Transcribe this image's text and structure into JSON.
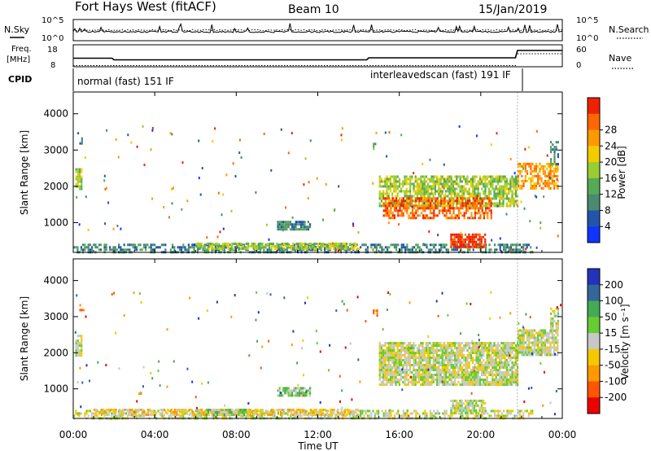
{
  "header": {
    "station": "Fort Hays West (fitACF)",
    "beam": "Beam 10",
    "date": "15/Jan/2019"
  },
  "noise_panel": {
    "left_label": "N.Sky",
    "right_label": "N.Search",
    "left_ticks": [
      "10^5",
      "10^0"
    ],
    "right_ticks": [
      "10^5",
      "10^0"
    ]
  },
  "freq_panel": {
    "left_label_1": "Freq.",
    "left_label_2": "[MHz]",
    "left_ticks": [
      "18",
      "8"
    ],
    "right_label": "Nave",
    "right_ticks": [
      "60",
      "0"
    ]
  },
  "cpid": {
    "label": "CPID",
    "modes": [
      {
        "name": "normal (fast) 151 IF",
        "start_hour": 0,
        "end_hour": 21.8
      },
      {
        "name": "interleavedscan (fast) 191 IF",
        "start_hour": 21.8,
        "end_hour": 24
      }
    ]
  },
  "power_colorbar": {
    "label": "Power [dB]",
    "ticks": [
      "4",
      "8",
      "12",
      "16",
      "20",
      "24",
      "28"
    ],
    "colors": [
      "#1133ff",
      "#2255aa",
      "#4a8a70",
      "#55aa55",
      "#99cc33",
      "#f2cc00",
      "#ff9900",
      "#ff6600",
      "#ee2200"
    ]
  },
  "velocity_colorbar": {
    "label": "Velocity [m s⁻¹]",
    "ticks": [
      "200",
      "100",
      "50",
      "15",
      "-15",
      "-50",
      "-100",
      "-200"
    ],
    "colors": [
      "#2233bb",
      "#336699",
      "#44aa55",
      "#66cc33",
      "#c8c8c8",
      "#f5c800",
      "#ff9900",
      "#ff5500",
      "#ee0000"
    ]
  },
  "x_axis": {
    "label": "Time UT",
    "ticks": [
      "00:00",
      "04:00",
      "08:00",
      "12:00",
      "16:00",
      "20:00",
      "00:00"
    ]
  },
  "chart_data": [
    {
      "type": "heatmap",
      "title": "Power",
      "ylabel": "Slant Range [km]",
      "xlabel": "Time UT",
      "xlim": [
        0,
        24
      ],
      "ylim": [
        180,
        4600
      ],
      "yticks": [
        1000,
        2000,
        3000,
        4000
      ],
      "regions": [
        {
          "t0": 0.0,
          "t1": 22.5,
          "r0": 180,
          "r1": 420,
          "level": 2,
          "density": 0.55
        },
        {
          "t0": 6.0,
          "t1": 14.0,
          "r0": 250,
          "r1": 450,
          "level": 4,
          "density": 0.7
        },
        {
          "t0": 10.0,
          "t1": 11.6,
          "r0": 800,
          "r1": 1050,
          "level": 2,
          "density": 0.85
        },
        {
          "t0": 0.1,
          "t1": 0.4,
          "r0": 1950,
          "r1": 2500,
          "level": 4,
          "density": 0.8
        },
        {
          "t0": 0.3,
          "t1": 0.5,
          "r0": 3150,
          "r1": 3350,
          "level": 1,
          "density": 0.6
        },
        {
          "t0": 14.7,
          "t1": 14.9,
          "r0": 3050,
          "r1": 3200,
          "level": 3,
          "density": 0.6
        },
        {
          "t0": 15.0,
          "t1": 21.8,
          "r0": 1450,
          "r1": 2300,
          "level": 4,
          "density": 0.75
        },
        {
          "t0": 15.2,
          "t1": 20.5,
          "r0": 1100,
          "r1": 1700,
          "level": 7,
          "density": 0.6
        },
        {
          "t0": 18.5,
          "t1": 20.2,
          "r0": 300,
          "r1": 700,
          "level": 8,
          "density": 0.8
        },
        {
          "t0": 21.8,
          "t1": 23.8,
          "r0": 1950,
          "r1": 2650,
          "level": 6,
          "density": 0.6
        },
        {
          "t0": 23.4,
          "t1": 23.8,
          "r0": 2600,
          "r1": 3250,
          "level": 2,
          "density": 0.5
        }
      ]
    },
    {
      "type": "heatmap",
      "title": "Velocity",
      "ylabel": "Slant Range [km]",
      "xlabel": "Time UT",
      "xlim": [
        0,
        24
      ],
      "ylim": [
        180,
        4600
      ],
      "yticks": [
        1000,
        2000,
        3000,
        4000
      ],
      "regions": [
        {
          "t0": 0.0,
          "t1": 22.5,
          "r0": 180,
          "r1": 420,
          "level": 4,
          "density": 0.55
        },
        {
          "t0": 1.0,
          "t1": 14.0,
          "r0": 250,
          "r1": 450,
          "level": 5,
          "density": 0.6
        },
        {
          "t0": 6.5,
          "t1": 8.5,
          "r0": 250,
          "r1": 450,
          "level": 3,
          "density": 0.6
        },
        {
          "t0": 10.0,
          "t1": 11.6,
          "r0": 800,
          "r1": 1050,
          "level": 3,
          "density": 0.85
        },
        {
          "t0": 0.1,
          "t1": 0.4,
          "r0": 1950,
          "r1": 2500,
          "level": 4,
          "density": 0.8
        },
        {
          "t0": 0.3,
          "t1": 0.5,
          "r0": 3150,
          "r1": 3350,
          "level": 6,
          "density": 0.6
        },
        {
          "t0": 14.7,
          "t1": 14.9,
          "r0": 3050,
          "r1": 3200,
          "level": 6,
          "density": 0.6
        },
        {
          "t0": 15.0,
          "t1": 21.8,
          "r0": 1100,
          "r1": 2300,
          "level": 4,
          "density": 0.85
        },
        {
          "t0": 18.5,
          "t1": 20.2,
          "r0": 300,
          "r1": 700,
          "level": 4,
          "density": 0.8
        },
        {
          "t0": 21.8,
          "t1": 23.8,
          "r0": 1950,
          "r1": 2650,
          "level": 4,
          "density": 0.85
        },
        {
          "t0": 23.4,
          "t1": 23.8,
          "r0": 2600,
          "r1": 3250,
          "level": 4,
          "density": 0.6
        }
      ]
    }
  ]
}
